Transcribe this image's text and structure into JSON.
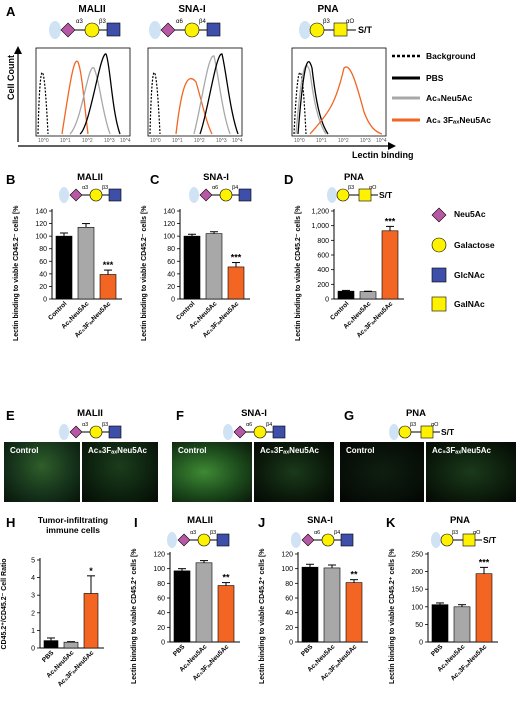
{
  "panels": {
    "A": {
      "letter": "A",
      "titles": [
        "MALII",
        "SNA-I",
        "PNA"
      ],
      "ylabel": "Cell Count",
      "xlabel": "Lectin binding",
      "ticks": [
        "10^0",
        "10^1",
        "10^2",
        "10^3",
        "10^4"
      ]
    },
    "B": {
      "letter": "B",
      "title": "MALII"
    },
    "C": {
      "letter": "C",
      "title": "SNA-I"
    },
    "D": {
      "letter": "D",
      "title": "PNA"
    },
    "E": {
      "letter": "E",
      "title": "MALII"
    },
    "F": {
      "letter": "F",
      "title": "SNA-I"
    },
    "G": {
      "letter": "G",
      "title": "PNA"
    },
    "H": {
      "letter": "H",
      "title": "Tumor-infiltrating immune cells"
    },
    "I": {
      "letter": "I",
      "title": "MALII"
    },
    "J": {
      "letter": "J",
      "title": "SNA-I"
    },
    "K": {
      "letter": "K",
      "title": "PNA"
    }
  },
  "legend_lines": [
    {
      "label": "Background",
      "style": "dotted",
      "color": "#000000"
    },
    {
      "label": "PBS",
      "style": "solid",
      "color": "#000000"
    },
    {
      "label": "Ac₅Neu5Ac",
      "style": "solid",
      "color": "#a8a8a8"
    },
    {
      "label": "Ac₅ 3FₐₓNeu5Ac",
      "style": "solid",
      "color": "#f26522"
    }
  ],
  "legend_sugars": [
    {
      "label": "Neu5Ac",
      "shape": "diamond",
      "color": "#b857a6"
    },
    {
      "label": "Galactose",
      "shape": "circle",
      "color": "#fff200"
    },
    {
      "label": "GlcNAc",
      "shape": "square",
      "color": "#3d4fa8"
    },
    {
      "label": "GalNAc",
      "shape": "square",
      "color": "#fff200"
    }
  ],
  "glycan_labels": {
    "a3": "α3",
    "a6": "α6",
    "b3": "β3",
    "b4": "β4",
    "aO": "αO",
    "ST": "S/T"
  },
  "ylabel_viable_cd452m": "Lectin binding to viable CD45.2⁻ cells [% of control]",
  "ylabel_viable_cd452p": "Lectin binding to viable CD45.2⁺ cells [% of control]",
  "ylabel_ratio": "CD45.2⁺/CD45.2⁻ Cell Ratio",
  "micro_labels": {
    "control": "Control",
    "treated": "Ac₅3FₐₓNeu5Ac"
  },
  "colors": {
    "control": "#000000",
    "ac5": "#a8a8a8",
    "ac53f": "#f26522"
  },
  "chart_data": [
    {
      "id": "B",
      "type": "bar",
      "categories": [
        "Control",
        "Ac₅Neu5Ac",
        "Ac₅3FₐₓNeu5Ac"
      ],
      "values": [
        100,
        114,
        39
      ],
      "errors": [
        5,
        6,
        7
      ],
      "ylim": [
        0,
        140
      ],
      "yticks": [
        0,
        20,
        40,
        60,
        80,
        100,
        120,
        140
      ],
      "sig": [
        "",
        "",
        "***"
      ]
    },
    {
      "id": "C",
      "type": "bar",
      "categories": [
        "Control",
        "Ac₅Neu5Ac",
        "Ac₅3FₐₓNeu5Ac"
      ],
      "values": [
        100,
        104,
        51
      ],
      "errors": [
        3,
        3,
        7
      ],
      "ylim": [
        0,
        140
      ],
      "yticks": [
        0,
        20,
        40,
        60,
        80,
        100,
        120,
        140
      ],
      "sig": [
        "",
        "",
        "***"
      ]
    },
    {
      "id": "D",
      "type": "bar",
      "categories": [
        "Control",
        "Ac₅Neu5Ac",
        "Ac₅3FₐₓNeu5Ac"
      ],
      "values": [
        107,
        100,
        930
      ],
      "errors": [
        10,
        6,
        60
      ],
      "ylim": [
        0,
        1200
      ],
      "yticks": [
        0,
        200,
        400,
        600,
        800,
        1000,
        1200
      ],
      "yticklabels": [
        "0",
        "200",
        "400",
        "600",
        "800",
        "1,000",
        "1,200"
      ],
      "sig": [
        "",
        "",
        "***"
      ]
    },
    {
      "id": "H",
      "type": "bar",
      "categories": [
        "PBS",
        "Ac₅Neu5Ac",
        "Ac₅3FₐₓNeu5Ac"
      ],
      "values": [
        0.42,
        0.33,
        3.1
      ],
      "errors": [
        0.15,
        0.03,
        1.0
      ],
      "ylim": [
        0,
        5
      ],
      "yticks": [
        0,
        1,
        2,
        3,
        4,
        5
      ],
      "sig": [
        "",
        "",
        "*"
      ]
    },
    {
      "id": "I",
      "type": "bar",
      "categories": [
        "PBS",
        "Ac₅Neu5Ac",
        "Ac₅3FₐₓNeu5Ac"
      ],
      "values": [
        97,
        108,
        77
      ],
      "errors": [
        3,
        3,
        4
      ],
      "ylim": [
        0,
        120
      ],
      "yticks": [
        0,
        20,
        40,
        60,
        80,
        100,
        120
      ],
      "sig": [
        "",
        "",
        "**"
      ]
    },
    {
      "id": "J",
      "type": "bar",
      "categories": [
        "PBS",
        "Ac₅Neu5Ac",
        "Ac₅3FₐₓNeu5Ac"
      ],
      "values": [
        102,
        101,
        81
      ],
      "errors": [
        4,
        4,
        4
      ],
      "ylim": [
        0,
        120
      ],
      "yticks": [
        0,
        20,
        40,
        60,
        80,
        100,
        120
      ],
      "sig": [
        "",
        "",
        "**"
      ]
    },
    {
      "id": "K",
      "type": "bar",
      "categories": [
        "PBS",
        "Ac₅Neu5Ac",
        "Ac₅3FₐₓNeu5Ac"
      ],
      "values": [
        106,
        100,
        194
      ],
      "errors": [
        5,
        6,
        18
      ],
      "ylim": [
        0,
        250
      ],
      "yticks": [
        0,
        50,
        100,
        150,
        200,
        250
      ],
      "sig": [
        "",
        "",
        "***"
      ]
    }
  ]
}
